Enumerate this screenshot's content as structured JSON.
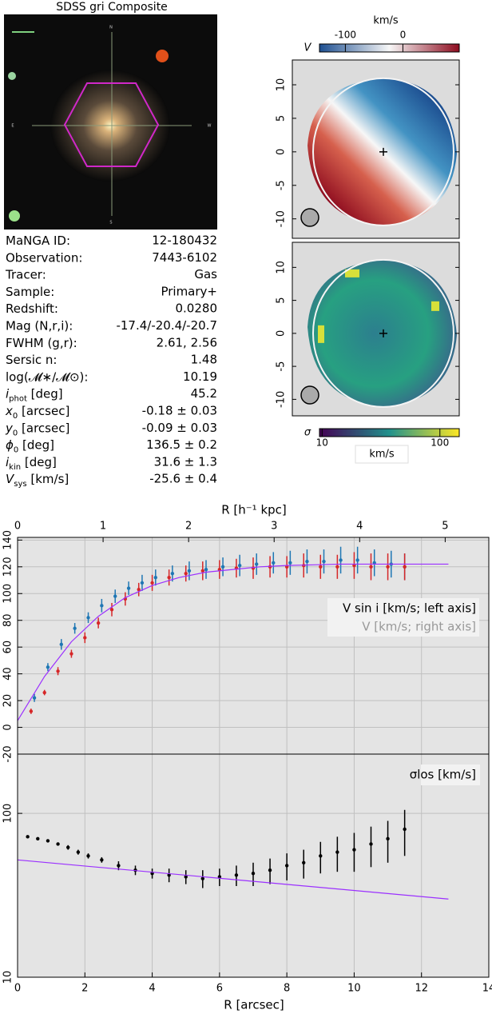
{
  "image": {
    "title": "SDSS gri Composite",
    "compass": [
      "N",
      "E",
      "W",
      "S"
    ]
  },
  "info": [
    {
      "label": "MaNGA ID:",
      "value": "12-180432"
    },
    {
      "label": "Observation:",
      "value": "7443-6102"
    },
    {
      "label": "Tracer:",
      "value": "Gas"
    },
    {
      "label": "Sample:",
      "value": "Primary+"
    },
    {
      "label": "Redshift:",
      "value": "0.0280"
    },
    {
      "label": "Mag (N,r,i):",
      "value": "-17.4/-20.4/-20.7"
    },
    {
      "label": "FWHM (g,r):",
      "value": "2.61, 2.56"
    },
    {
      "label": "Sersic n:",
      "value": "1.48"
    },
    {
      "label": "log(𝓜∗/𝓜⊙):",
      "value": "10.19"
    },
    {
      "label": "i",
      "sub": "phot",
      "unit": " [deg]",
      "value": "45.2"
    },
    {
      "label": "x",
      "sub": "0",
      "unit": " [arcsec]",
      "value": "-0.18 ± 0.03"
    },
    {
      "label": "y",
      "sub": "0",
      "unit": " [arcsec]",
      "value": "-0.09 ± 0.03"
    },
    {
      "label": "ϕ",
      "sub": "0",
      "unit": " [deg]",
      "value": "136.5 ± 0.2"
    },
    {
      "label": "i",
      "sub": "kin",
      "unit": " [deg]",
      "value": "31.6 ± 1.3"
    },
    {
      "label": "V",
      "sub": "sys",
      "unit": " [km/s]",
      "value": "-25.6 ± 0.4"
    }
  ],
  "chart_data": [
    {
      "type": "map",
      "colorbar_label": "V",
      "colorbar_unit": "km/s",
      "clim": [
        -145,
        98
      ],
      "cticks": [
        -100,
        0
      ],
      "cmap": [
        "#1d4f91",
        "#f7f7f7",
        "#8e0c1f"
      ],
      "ylim": [
        -12.9,
        13.7
      ],
      "yticks": [
        10,
        5,
        0,
        -5,
        -10
      ]
    },
    {
      "type": "map",
      "colorbar_label": "σ",
      "colorbar_unit": "km/s",
      "clim": [
        9.5,
        146
      ],
      "log": true,
      "cticks": [
        10,
        100
      ],
      "cmap": [
        "#440154",
        "#21918c",
        "#fde725"
      ],
      "ylim": [
        -12.5,
        13.8
      ],
      "yticks": [
        10,
        5,
        0,
        -5,
        -10
      ]
    },
    {
      "type": "errorbar",
      "x2label": "R [h⁻¹ kpc]",
      "x2lim": [
        0,
        5.51
      ],
      "x2ticks": [
        0,
        1,
        2,
        3,
        4,
        5
      ],
      "xlim": [
        0,
        14
      ],
      "ylim": [
        -20,
        142
      ],
      "yticks": [
        -20,
        0,
        20,
        40,
        60,
        80,
        100,
        120,
        140
      ],
      "grid": true,
      "series": [
        {
          "name": "V sin i [km/s; left axis]",
          "color": "#1f77b4",
          "x": [
            0.5,
            0.9,
            1.3,
            1.7,
            2.1,
            2.5,
            2.9,
            3.3,
            3.7,
            4.1,
            4.6,
            5.1,
            5.6,
            6.1,
            6.6,
            7.1,
            7.6,
            8.1,
            8.6,
            9.1,
            9.6,
            10.1,
            10.6,
            11.1,
            11.5
          ],
          "values": [
            22,
            45,
            62,
            74,
            82,
            91,
            98,
            104,
            108,
            112,
            115,
            117,
            118,
            120,
            121,
            122,
            123,
            123,
            124,
            124,
            125,
            125,
            123,
            122,
            120
          ],
          "errors": [
            3,
            3,
            4,
            4,
            4,
            5,
            5,
            5,
            6,
            6,
            6,
            7,
            7,
            7,
            8,
            8,
            8,
            9,
            9,
            9,
            10,
            10,
            10,
            10,
            10
          ]
        },
        {
          "name": "V [km/s; right axis]",
          "color": "#d62728",
          "x": [
            0.4,
            0.8,
            1.2,
            1.6,
            2.0,
            2.4,
            2.8,
            3.2,
            3.6,
            4.0,
            4.5,
            5.0,
            5.5,
            6.0,
            6.5,
            7.0,
            7.5,
            8.0,
            8.5,
            9.0,
            9.5,
            10.0,
            10.5,
            11.0,
            11.5
          ],
          "values": [
            12,
            26,
            42,
            55,
            67,
            78,
            88,
            96,
            103,
            108,
            112,
            115,
            117,
            118,
            119,
            119,
            120,
            120,
            121,
            120,
            120,
            121,
            120,
            120,
            120
          ],
          "errors": [
            2,
            2,
            3,
            3,
            4,
            4,
            5,
            5,
            5,
            6,
            6,
            6,
            7,
            7,
            7,
            8,
            8,
            8,
            9,
            9,
            9,
            10,
            10,
            10,
            10
          ]
        },
        {
          "color": "#9b30ff",
          "x": [
            0,
            0.8,
            1.6,
            2.4,
            3.2,
            4.0,
            4.8,
            5.6,
            6.4,
            7.2,
            8.0,
            8.8,
            9.6,
            10.4,
            11.2,
            12.0,
            12.8
          ],
          "values": [
            5,
            38,
            64,
            83,
            97,
            106,
            112,
            116,
            118,
            120,
            121,
            121.5,
            122,
            122,
            122,
            122,
            122
          ]
        }
      ]
    },
    {
      "type": "errorbar",
      "xlabel": "R [arcsec]",
      "xlim": [
        0,
        14
      ],
      "xticks": [
        0,
        2,
        4,
        6,
        8,
        10,
        12,
        14
      ],
      "ylim": [
        10,
        230
      ],
      "log": true,
      "yticks": [
        10,
        100
      ],
      "grid": true,
      "series": [
        {
          "name": "σlos [km/s]",
          "color": "#000000",
          "x": [
            0.3,
            0.6,
            0.9,
            1.2,
            1.5,
            1.8,
            2.1,
            2.5,
            3,
            3.5,
            4,
            4.5,
            5,
            5.5,
            6,
            6.5,
            7,
            7.5,
            8,
            8.5,
            9,
            9.5,
            10,
            10.5,
            11,
            11.5
          ],
          "values": [
            72,
            70,
            68,
            65,
            62,
            58,
            55,
            52,
            48,
            45,
            43,
            42,
            41,
            40,
            41,
            42,
            43,
            45,
            48,
            50,
            55,
            58,
            60,
            65,
            70,
            80
          ],
          "errors": [
            1,
            1,
            1,
            1,
            2,
            2,
            2,
            2,
            3,
            3,
            3,
            4,
            4,
            5,
            5,
            6,
            7,
            8,
            9,
            10,
            12,
            14,
            16,
            18,
            20,
            25
          ]
        },
        {
          "color": "#9b30ff",
          "x": [
            0,
            12.8
          ],
          "values": [
            52,
            30
          ]
        }
      ]
    }
  ]
}
